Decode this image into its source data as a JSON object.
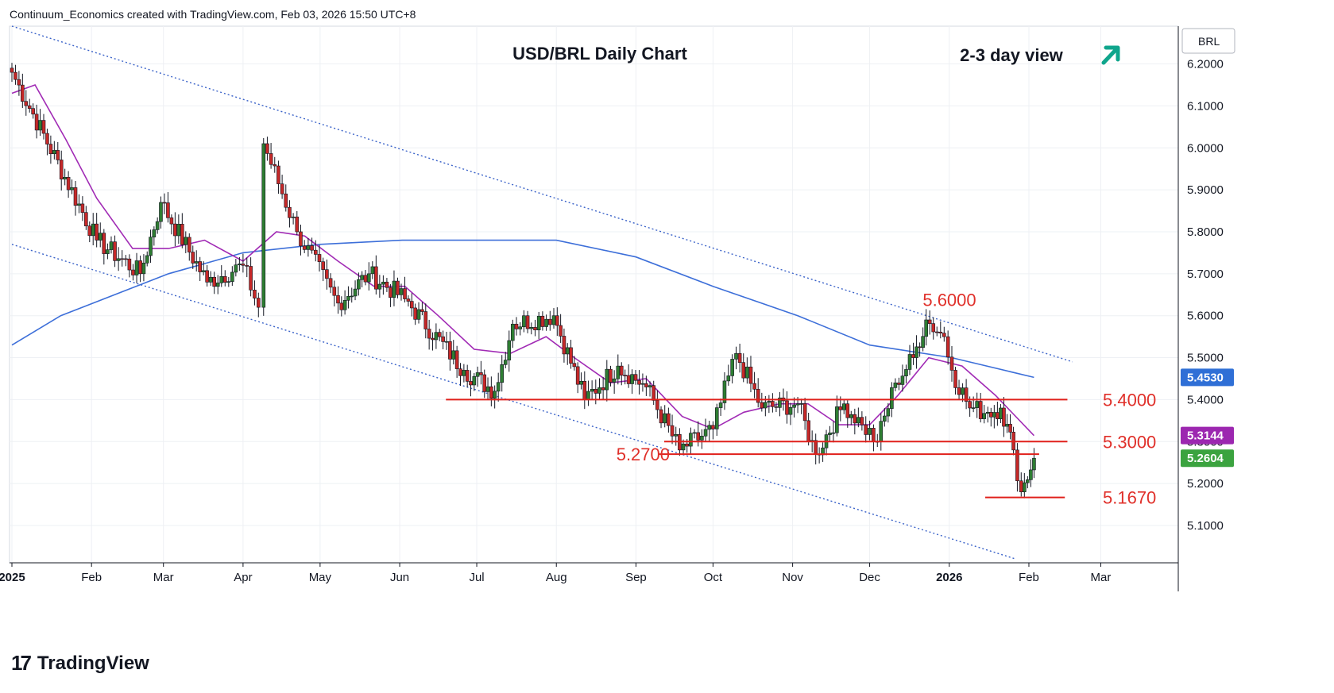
{
  "header": {
    "credit": "Continuum_Economics created with TradingView.com, Feb 03, 2026 15:50 UTC+8"
  },
  "branding": {
    "logo_mark": "17",
    "name": "TradingView"
  },
  "colors": {
    "candle_up": "#2e7d32",
    "candle_down": "#c62828",
    "level_line": "#e0201b",
    "level_text": "#e0302a",
    "ma_short": "#a12bb5",
    "ma_long": "#3d6fd9",
    "channel": "#3b63c9",
    "arrow": "#0fa58c",
    "badge_blue": "#2f6fd6",
    "badge_purple": "#9c27b0",
    "badge_green": "#3ba33f"
  },
  "chart_data": {
    "type": "candlestick",
    "title": "USD/BRL Daily Chart",
    "view_label": "2-3 day view",
    "view_direction": "up",
    "view_icon": "arrow-up-right-icon",
    "symbol": "BRL",
    "x_ticks": [
      "2025",
      "Feb",
      "Mar",
      "Apr",
      "May",
      "Jun",
      "Jul",
      "Aug",
      "Sep",
      "Oct",
      "Nov",
      "Dec",
      "2026",
      "Feb",
      "Mar"
    ],
    "y_ticks": [
      "5.1000",
      "5.2000",
      "5.3000",
      "5.4000",
      "5.5000",
      "5.6000",
      "5.7000",
      "5.8000",
      "5.9000",
      "6.0000",
      "6.1000",
      "6.2000"
    ],
    "ylim": [
      5.02,
      6.29
    ],
    "grid": true,
    "levels": [
      {
        "label": "5.6000",
        "value": 5.6
      },
      {
        "label": "5.4000",
        "value": 5.4
      },
      {
        "label": "5.3000",
        "value": 5.3
      },
      {
        "label": "5.2700",
        "value": 5.27
      },
      {
        "label": "5.1670",
        "value": 5.167
      }
    ],
    "price_badges": [
      {
        "label": "5.4530",
        "value": 5.453,
        "series": "long moving average"
      },
      {
        "label": "5.3144",
        "value": 5.3144,
        "series": "short moving average"
      },
      {
        "label": "5.2604",
        "value": 5.2604,
        "series": "last price"
      }
    ],
    "key_points": [
      {
        "date": "2025-01-01",
        "close": 6.18
      },
      {
        "date": "2025-02-03",
        "close": 5.78
      },
      {
        "date": "2025-02-20",
        "close": 5.7
      },
      {
        "date": "2025-02-28",
        "close": 5.87
      },
      {
        "date": "2025-03-18",
        "close": 5.68
      },
      {
        "date": "2025-04-01",
        "close": 5.72
      },
      {
        "date": "2025-04-07",
        "close": 5.62
      },
      {
        "date": "2025-04-09",
        "close": 6.01
      },
      {
        "date": "2025-04-22",
        "close": 5.8
      },
      {
        "date": "2025-05-08",
        "close": 5.63
      },
      {
        "date": "2025-05-20",
        "close": 5.7
      },
      {
        "date": "2025-06-03",
        "close": 5.64
      },
      {
        "date": "2025-06-26",
        "close": 5.47
      },
      {
        "date": "2025-07-08",
        "close": 5.42
      },
      {
        "date": "2025-07-15",
        "close": 5.58
      },
      {
        "date": "2025-07-31",
        "close": 5.6
      },
      {
        "date": "2025-08-12",
        "close": 5.4
      },
      {
        "date": "2025-08-25",
        "close": 5.48
      },
      {
        "date": "2025-09-05",
        "close": 5.43
      },
      {
        "date": "2025-09-18",
        "close": 5.28
      },
      {
        "date": "2025-10-01",
        "close": 5.33
      },
      {
        "date": "2025-10-10",
        "close": 5.51
      },
      {
        "date": "2025-10-20",
        "close": 5.38
      },
      {
        "date": "2025-11-03",
        "close": 5.39
      },
      {
        "date": "2025-11-10",
        "close": 5.27
      },
      {
        "date": "2025-11-21",
        "close": 5.39
      },
      {
        "date": "2025-11-28",
        "close": 5.34
      },
      {
        "date": "2025-12-04",
        "close": 5.3
      },
      {
        "date": "2025-12-11",
        "close": 5.44
      },
      {
        "date": "2025-12-18",
        "close": 5.5
      },
      {
        "date": "2025-12-23",
        "close": 5.59
      },
      {
        "date": "2025-12-30",
        "close": 5.55
      },
      {
        "date": "2026-01-02",
        "close": 5.47
      },
      {
        "date": "2026-01-09",
        "close": 5.38
      },
      {
        "date": "2026-01-16",
        "close": 5.37
      },
      {
        "date": "2026-01-21",
        "close": 5.38
      },
      {
        "date": "2026-01-26",
        "close": 5.28
      },
      {
        "date": "2026-01-29",
        "close": 5.18
      },
      {
        "date": "2026-02-03",
        "close": 5.2604
      }
    ],
    "moving_average_short": [
      {
        "date": "2025-01-01",
        "value": 6.13
      },
      {
        "date": "2025-01-10",
        "value": 6.15
      },
      {
        "date": "2025-01-22",
        "value": 6.02
      },
      {
        "date": "2025-02-03",
        "value": 5.88
      },
      {
        "date": "2025-02-17",
        "value": 5.76
      },
      {
        "date": "2025-03-03",
        "value": 5.76
      },
      {
        "date": "2025-03-17",
        "value": 5.78
      },
      {
        "date": "2025-04-01",
        "value": 5.73
      },
      {
        "date": "2025-04-14",
        "value": 5.8
      },
      {
        "date": "2025-04-25",
        "value": 5.79
      },
      {
        "date": "2025-05-08",
        "value": 5.73
      },
      {
        "date": "2025-05-22",
        "value": 5.67
      },
      {
        "date": "2025-06-03",
        "value": 5.67
      },
      {
        "date": "2025-06-16",
        "value": 5.6
      },
      {
        "date": "2025-06-30",
        "value": 5.52
      },
      {
        "date": "2025-07-14",
        "value": 5.51
      },
      {
        "date": "2025-07-28",
        "value": 5.55
      },
      {
        "date": "2025-08-08",
        "value": 5.5
      },
      {
        "date": "2025-08-22",
        "value": 5.44
      },
      {
        "date": "2025-09-05",
        "value": 5.45
      },
      {
        "date": "2025-09-19",
        "value": 5.36
      },
      {
        "date": "2025-10-01",
        "value": 5.33
      },
      {
        "date": "2025-10-13",
        "value": 5.37
      },
      {
        "date": "2025-10-27",
        "value": 5.39
      },
      {
        "date": "2025-11-07",
        "value": 5.39
      },
      {
        "date": "2025-11-19",
        "value": 5.34
      },
      {
        "date": "2025-12-01",
        "value": 5.34
      },
      {
        "date": "2025-12-12",
        "value": 5.41
      },
      {
        "date": "2025-12-24",
        "value": 5.5
      },
      {
        "date": "2026-01-06",
        "value": 5.48
      },
      {
        "date": "2026-01-19",
        "value": 5.41
      },
      {
        "date": "2026-02-03",
        "value": 5.3144
      }
    ],
    "moving_average_long": [
      {
        "date": "2025-01-01",
        "value": 5.53
      },
      {
        "date": "2025-01-20",
        "value": 5.6
      },
      {
        "date": "2025-02-10",
        "value": 5.65
      },
      {
        "date": "2025-03-03",
        "value": 5.7
      },
      {
        "date": "2025-04-01",
        "value": 5.75
      },
      {
        "date": "2025-05-01",
        "value": 5.77
      },
      {
        "date": "2025-06-02",
        "value": 5.78
      },
      {
        "date": "2025-07-01",
        "value": 5.78
      },
      {
        "date": "2025-08-01",
        "value": 5.78
      },
      {
        "date": "2025-09-01",
        "value": 5.74
      },
      {
        "date": "2025-10-01",
        "value": 5.67
      },
      {
        "date": "2025-11-03",
        "value": 5.6
      },
      {
        "date": "2025-12-01",
        "value": 5.53
      },
      {
        "date": "2026-01-02",
        "value": 5.5
      },
      {
        "date": "2026-02-03",
        "value": 5.453
      }
    ],
    "channel_lines": [
      {
        "name": "upper",
        "points": [
          {
            "date": "2025-01-01",
            "value": 6.29
          },
          {
            "date": "2026-02-18",
            "value": 5.49
          }
        ]
      },
      {
        "name": "lower",
        "points": [
          {
            "date": "2025-01-01",
            "value": 5.77
          },
          {
            "date": "2026-01-27",
            "value": 5.02
          }
        ]
      }
    ]
  }
}
